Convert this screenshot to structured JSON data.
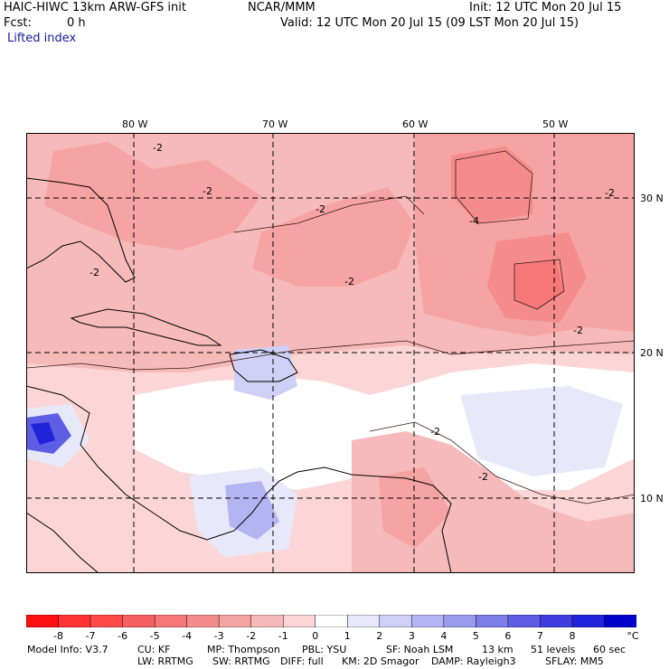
{
  "header": {
    "model_line": "HAIC-HIWC 13km ARW-GFS init",
    "center": "NCAR/MMM",
    "init": "Init: 12 UTC Mon 20 Jul 15",
    "fcst_label": "Fcst:",
    "fcst_value": "0 h",
    "valid": "Valid: 12 UTC Mon 20 Jul 15 (09 LST Mon 20 Jul 15)",
    "field": "Lifted index"
  },
  "map": {
    "lon_labels": [
      "80 W",
      "70 W",
      "60 W",
      "50 W"
    ],
    "lat_labels": [
      "30 N",
      "20 N",
      "10 N"
    ],
    "contour_label": "-2",
    "contour_label_4": "-4"
  },
  "colorbar": {
    "ticks": [
      "-8",
      "-7",
      "-6",
      "-5",
      "-4",
      "-3",
      "-2",
      "-1",
      "0",
      "1",
      "2",
      "3",
      "4",
      "5",
      "6",
      "7",
      "8"
    ],
    "unit": "°C",
    "colors": [
      "#ff1010",
      "#ff3333",
      "#ff4a4a",
      "#f76060",
      "#f57777",
      "#f58c8c",
      "#f5a3a3",
      "#f7baba",
      "#fcd6d6",
      "#ffffff",
      "#e8e8fb",
      "#cfd0f6",
      "#b3b4f2",
      "#9a9aee",
      "#7e7ee8",
      "#5e5ee5",
      "#3e3ee0",
      "#2222db",
      "#0000cc"
    ]
  },
  "footer": {
    "line1": [
      "Model Info: V3.7",
      "CU: KF",
      "MP: Thompson",
      "PBL: YSU",
      "SF: Noah LSM",
      "13 km",
      "51 levels",
      "60 sec"
    ],
    "line2": [
      "LW: RRTMG",
      "SW: RRTMG",
      "DIFF: full",
      "KM: 2D Smagor",
      "DAMP: Rayleigh3",
      "SFLAY: MM5"
    ]
  }
}
